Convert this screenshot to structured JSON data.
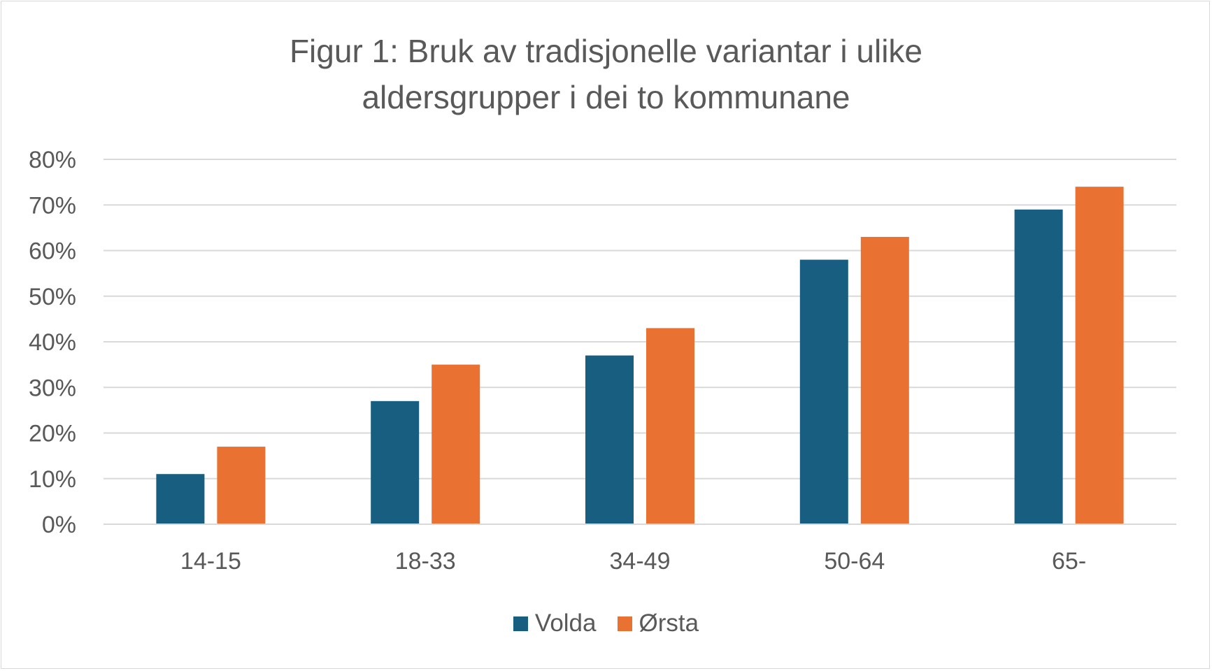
{
  "chart_data": {
    "type": "bar",
    "title_line1": "Figur 1: Bruk av tradisjonelle variantar i ulike",
    "title_line2": "aldersgrupper i dei to kommunane",
    "categories": [
      "14-15",
      "18-33",
      "34-49",
      "50-64",
      "65-"
    ],
    "series": [
      {
        "name": "Volda",
        "color": "#175e80",
        "values": [
          0.11,
          0.27,
          0.37,
          0.58,
          0.69
        ]
      },
      {
        "name": "Ørsta",
        "color": "#e97132",
        "values": [
          0.17,
          0.35,
          0.43,
          0.63,
          0.74
        ]
      }
    ],
    "ylim": [
      0,
      0.8
    ],
    "yticks": [
      0,
      0.1,
      0.2,
      0.3,
      0.4,
      0.5,
      0.6,
      0.7,
      0.8
    ],
    "ytick_labels": [
      "0%",
      "10%",
      "20%",
      "30%",
      "40%",
      "50%",
      "60%",
      "70%",
      "80%"
    ],
    "grid": true,
    "legend_position": "bottom"
  }
}
